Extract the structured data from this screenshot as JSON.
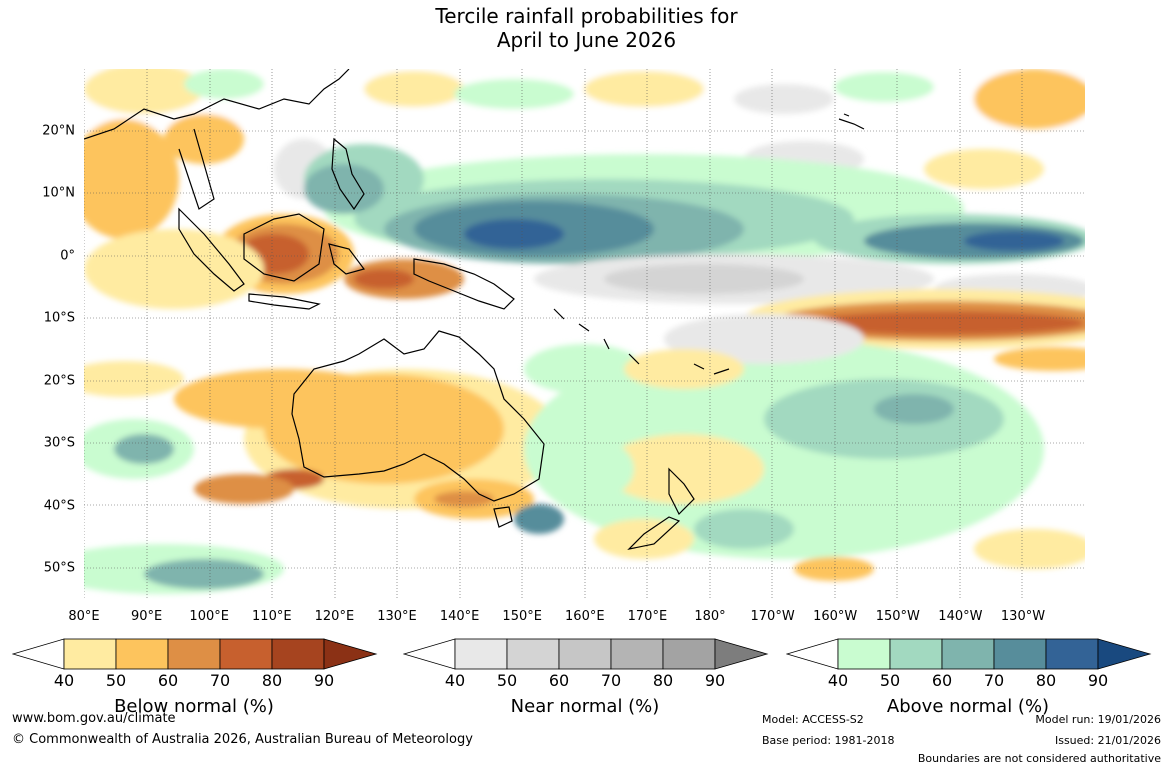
{
  "title_line1": "Tercile rainfall probabilities for",
  "title_line2": "April to June 2026",
  "latitudes": [
    "20°N",
    "10°N",
    "0°",
    "10°S",
    "20°S",
    "30°S",
    "40°S",
    "50°S"
  ],
  "longitudes": [
    "80°E",
    "90°E",
    "100°E",
    "110°E",
    "120°E",
    "130°E",
    "140°E",
    "150°E",
    "160°E",
    "170°E",
    "180°",
    "170°W",
    "160°W",
    "150°W",
    "140°W",
    "130°W"
  ],
  "colorbars": [
    {
      "title": "Below normal (%)",
      "ticks": [
        "40",
        "50",
        "60",
        "70",
        "80",
        "90"
      ],
      "colors": [
        "#ffeba1",
        "#fdc45d",
        "#de8f45",
        "#c7602e",
        "#a6441f",
        "#8b3115"
      ]
    },
    {
      "title": "Near normal (%)",
      "ticks": [
        "40",
        "50",
        "60",
        "70",
        "80",
        "90"
      ],
      "colors": [
        "#e8e8e8",
        "#d4d4d4",
        "#c6c6c6",
        "#b4b4b4",
        "#a3a3a3",
        "#7d7d7d"
      ]
    },
    {
      "title": "Above normal (%)",
      "ticks": [
        "40",
        "50",
        "60",
        "70",
        "80",
        "90"
      ],
      "colors": [
        "#c9fcd0",
        "#a2d9c0",
        "#7fb4ad",
        "#578d9b",
        "#336396",
        "#19497f"
      ]
    }
  ],
  "footer": {
    "website": "www.bom.gov.au/climate",
    "copyright": "© Commonwealth of Australia 2026, Australian Bureau of Meteorology",
    "model": "Model: ACCESS-S2",
    "base_period": "Base period: 1981-2018",
    "model_run": "Model run: 19/01/2026",
    "issued": "Issued: 21/01/2026",
    "disclaimer": "Boundaries are not considered authoritative"
  }
}
